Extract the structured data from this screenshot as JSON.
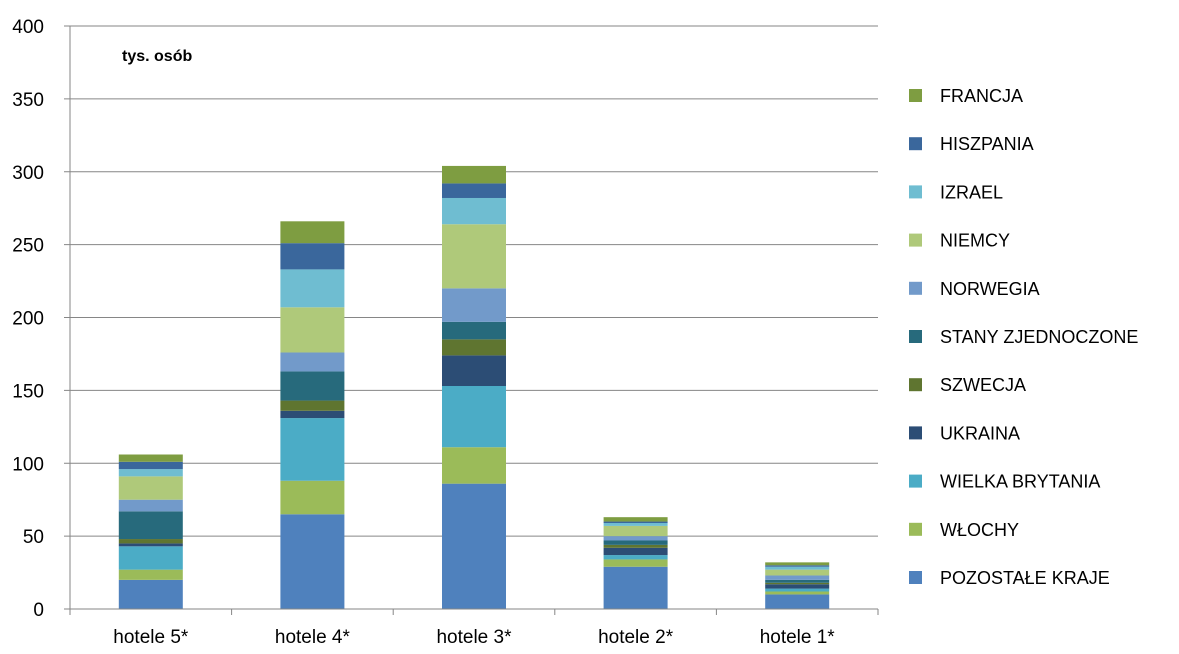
{
  "chart_data": {
    "type": "bar",
    "stacked": true,
    "unit_label": "tys. osób",
    "categories": [
      "hotele 5*",
      "hotele 4*",
      "hotele 3*",
      "hotele 2*",
      "hotele 1*"
    ],
    "series": [
      {
        "name": "POZOSTAŁE KRAJE",
        "color": "#4F81BD",
        "values": [
          20,
          65,
          86,
          29,
          10
        ]
      },
      {
        "name": "WŁOCHY",
        "color": "#9BBB59",
        "values": [
          7,
          23,
          25,
          5,
          2
        ]
      },
      {
        "name": "WIELKA BRYTANIA",
        "color": "#4BACC6",
        "values": [
          16,
          43,
          42,
          3,
          2
        ]
      },
      {
        "name": "UKRAINA",
        "color": "#2C4D75",
        "values": [
          2,
          5,
          21,
          5,
          3
        ]
      },
      {
        "name": "SZWECJA",
        "color": "#5F7530",
        "values": [
          3,
          7,
          11,
          2,
          1
        ]
      },
      {
        "name": "STANY ZJEDNOCZONE",
        "color": "#276A7C",
        "values": [
          19,
          20,
          12,
          3,
          2
        ]
      },
      {
        "name": "NORWEGIA",
        "color": "#729ACA",
        "values": [
          8,
          13,
          23,
          3,
          3
        ]
      },
      {
        "name": "NIEMCY",
        "color": "#AFC97A",
        "values": [
          16,
          31,
          44,
          7,
          4
        ]
      },
      {
        "name": "IZRAEL",
        "color": "#6FBDD1",
        "values": [
          5,
          26,
          18,
          2,
          2
        ]
      },
      {
        "name": "HISZPANIA",
        "color": "#3A679C",
        "values": [
          5,
          18,
          10,
          1,
          1
        ]
      },
      {
        "name": "FRANCJA",
        "color": "#7E9D41",
        "values": [
          5,
          15,
          12,
          3,
          2
        ]
      }
    ],
    "ylim": [
      0,
      400
    ],
    "yticks": [
      0,
      50,
      100,
      150,
      200,
      250,
      300,
      350,
      400
    ],
    "grid": true,
    "legend_position": "right"
  }
}
